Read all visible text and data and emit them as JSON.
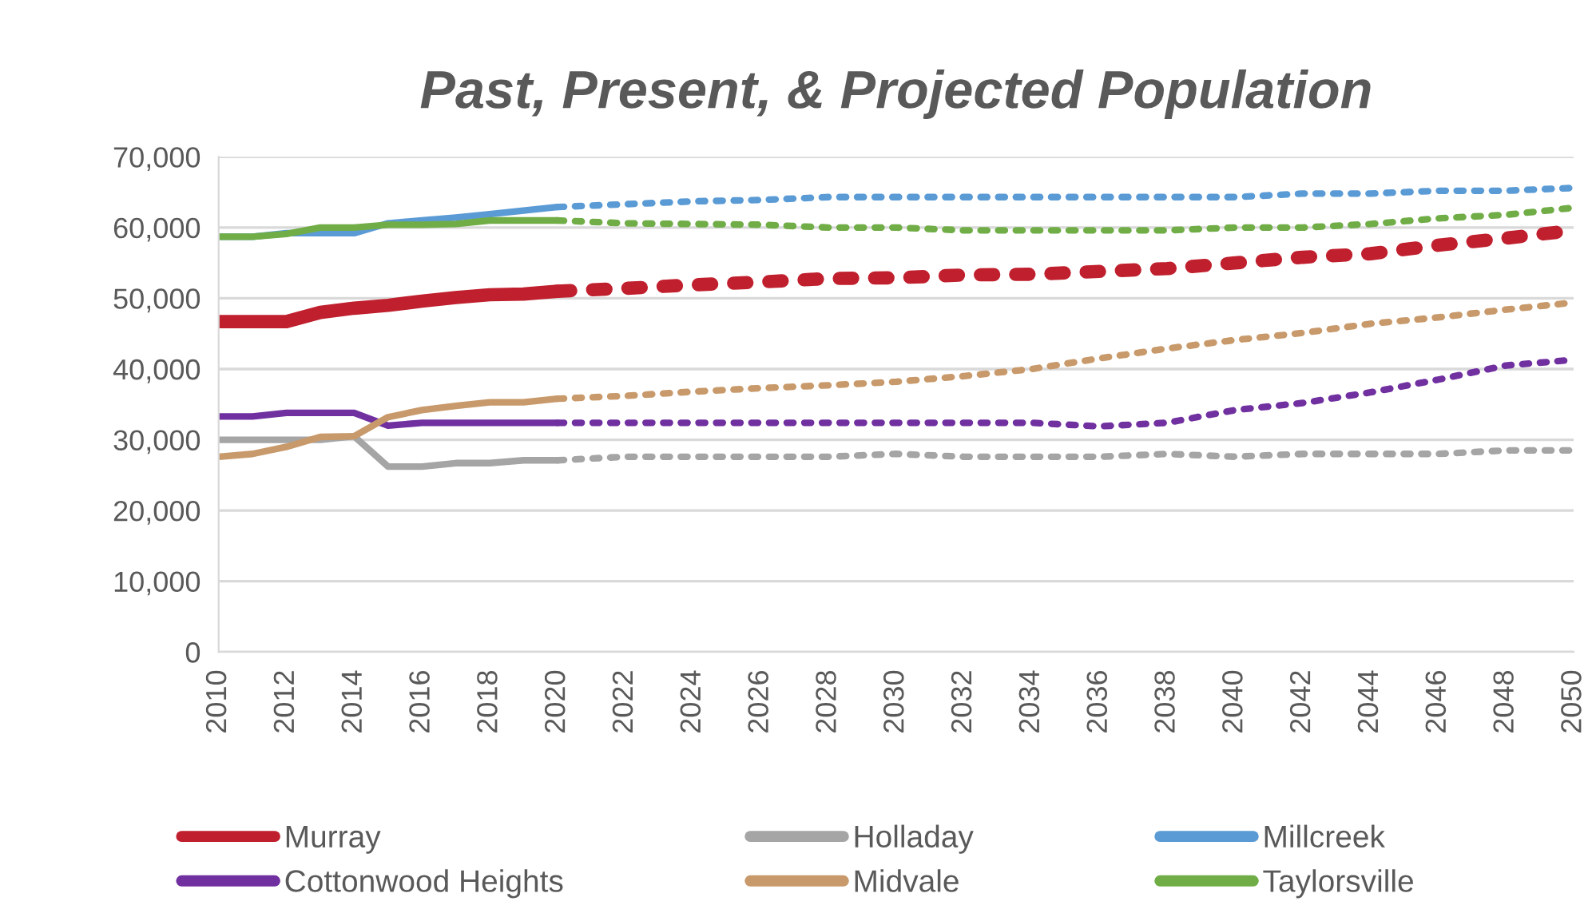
{
  "chart_data": {
    "type": "line",
    "title": "Past, Present, & Projected Population",
    "xlim": [
      2010,
      2050
    ],
    "xticks": [
      2010,
      2012,
      2014,
      2016,
      2018,
      2020,
      2022,
      2024,
      2026,
      2028,
      2030,
      2032,
      2034,
      2036,
      2038,
      2040,
      2042,
      2044,
      2046,
      2048,
      2050
    ],
    "ylim": [
      0,
      70000
    ],
    "yticks": [
      {
        "value": 0,
        "label": "0"
      },
      {
        "value": 10000,
        "label": "10,000"
      },
      {
        "value": 20000,
        "label": "20,000"
      },
      {
        "value": 30000,
        "label": "30,000"
      },
      {
        "value": 40000,
        "label": "40,000"
      },
      {
        "value": 50000,
        "label": "50,000"
      },
      {
        "value": 60000,
        "label": "60,000"
      },
      {
        "value": 70000,
        "label": "70,000"
      }
    ],
    "grid": "y",
    "legend": "bottom",
    "marker": "none",
    "series": [
      {
        "name": "Murray",
        "color": "#c0202e",
        "line_style": "solid",
        "x": [
          2010,
          2011,
          2012,
          2013,
          2014,
          2015,
          2016,
          2017,
          2018,
          2019,
          2020
        ],
        "values": [
          46700,
          46700,
          46700,
          48000,
          48600,
          49000,
          49600,
          50100,
          50500,
          50600,
          51000
        ]
      },
      {
        "name": "Cottonwood Heights",
        "color": "#7030a0",
        "line_style": "solid",
        "x": [
          2010,
          2011,
          2012,
          2013,
          2014,
          2015,
          2016,
          2017,
          2018,
          2019,
          2020
        ],
        "values": [
          33300,
          33300,
          33800,
          33800,
          33800,
          32000,
          32400,
          32400,
          32400,
          32400,
          32400
        ]
      },
      {
        "name": "Holladay",
        "color": "#a5a5a5",
        "line_style": "solid",
        "x": [
          2010,
          2011,
          2012,
          2013,
          2014,
          2015,
          2016,
          2017,
          2018,
          2019,
          2020
        ],
        "values": [
          30000,
          30000,
          30000,
          30000,
          30500,
          26200,
          26200,
          26700,
          26700,
          27100,
          27100
        ]
      },
      {
        "name": "Midvale",
        "color": "#c8996a",
        "line_style": "solid",
        "x": [
          2010,
          2011,
          2012,
          2013,
          2014,
          2015,
          2016,
          2017,
          2018,
          2019,
          2020
        ],
        "values": [
          27600,
          28000,
          29000,
          30400,
          30500,
          33200,
          34200,
          34800,
          35300,
          35300,
          35800
        ]
      },
      {
        "name": "Millcreek",
        "color": "#5b9bd5",
        "line_style": "solid",
        "x": [
          2010,
          2011,
          2012,
          2013,
          2014,
          2015,
          2016,
          2017,
          2018,
          2019,
          2020
        ],
        "values": [
          58700,
          58700,
          59200,
          59200,
          59200,
          60600,
          61000,
          61400,
          61900,
          62400,
          62900
        ]
      },
      {
        "name": "Taylorsville",
        "color": "#70ad47",
        "line_style": "solid",
        "x": [
          2010,
          2011,
          2012,
          2013,
          2014,
          2015,
          2016,
          2017,
          2018,
          2019,
          2020
        ],
        "values": [
          58700,
          58700,
          59100,
          60000,
          60000,
          60400,
          60400,
          60500,
          61000,
          61000,
          61000
        ]
      },
      {
        "color": "#c0202e",
        "line_style": "dotted",
        "x": [
          2020,
          2022,
          2024,
          2026,
          2028,
          2030,
          2032,
          2034,
          2036,
          2038,
          2040,
          2042,
          2044,
          2046,
          2048,
          2050
        ],
        "values": [
          51000,
          51400,
          51900,
          52300,
          52800,
          52900,
          53300,
          53400,
          53800,
          54200,
          55000,
          55800,
          56300,
          57500,
          58500,
          59600
        ]
      },
      {
        "color": "#7030a0",
        "line_style": "dotted",
        "x": [
          2020,
          2022,
          2024,
          2026,
          2028,
          2030,
          2032,
          2034,
          2036,
          2038,
          2040,
          2042,
          2044,
          2046,
          2048,
          2050
        ],
        "values": [
          32400,
          32400,
          32400,
          32400,
          32400,
          32400,
          32400,
          32400,
          31900,
          32400,
          34200,
          35200,
          36700,
          38500,
          40500,
          41300
        ]
      },
      {
        "color": "#a5a5a5",
        "line_style": "dotted",
        "x": [
          2020,
          2022,
          2024,
          2026,
          2028,
          2030,
          2032,
          2034,
          2036,
          2038,
          2040,
          2042,
          2044,
          2046,
          2048,
          2050
        ],
        "values": [
          27100,
          27600,
          27600,
          27600,
          27600,
          28000,
          27600,
          27600,
          27600,
          28000,
          27600,
          28000,
          28000,
          28000,
          28500,
          28500
        ]
      },
      {
        "color": "#c8996a",
        "line_style": "dotted",
        "x": [
          2020,
          2022,
          2024,
          2026,
          2028,
          2030,
          2032,
          2034,
          2036,
          2038,
          2040,
          2042,
          2044,
          2046,
          2048,
          2050
        ],
        "values": [
          35800,
          36200,
          36800,
          37300,
          37700,
          38200,
          39000,
          40000,
          41500,
          42900,
          44100,
          45100,
          46400,
          47300,
          48400,
          49400
        ]
      },
      {
        "color": "#5b9bd5",
        "line_style": "dotted",
        "x": [
          2020,
          2022,
          2024,
          2026,
          2028,
          2030,
          2032,
          2034,
          2036,
          2038,
          2040,
          2042,
          2044,
          2046,
          2048,
          2050
        ],
        "values": [
          62900,
          63300,
          63700,
          63900,
          64300,
          64300,
          64300,
          64300,
          64300,
          64300,
          64300,
          64800,
          64800,
          65200,
          65200,
          65600
        ]
      },
      {
        "color": "#70ad47",
        "line_style": "dotted",
        "x": [
          2020,
          2022,
          2024,
          2026,
          2028,
          2030,
          2032,
          2034,
          2036,
          2038,
          2040,
          2042,
          2044,
          2046,
          2048,
          2050
        ],
        "values": [
          61000,
          60600,
          60500,
          60400,
          60000,
          60000,
          59600,
          59600,
          59600,
          59600,
          60000,
          60000,
          60500,
          61300,
          61800,
          62800
        ]
      }
    ]
  }
}
